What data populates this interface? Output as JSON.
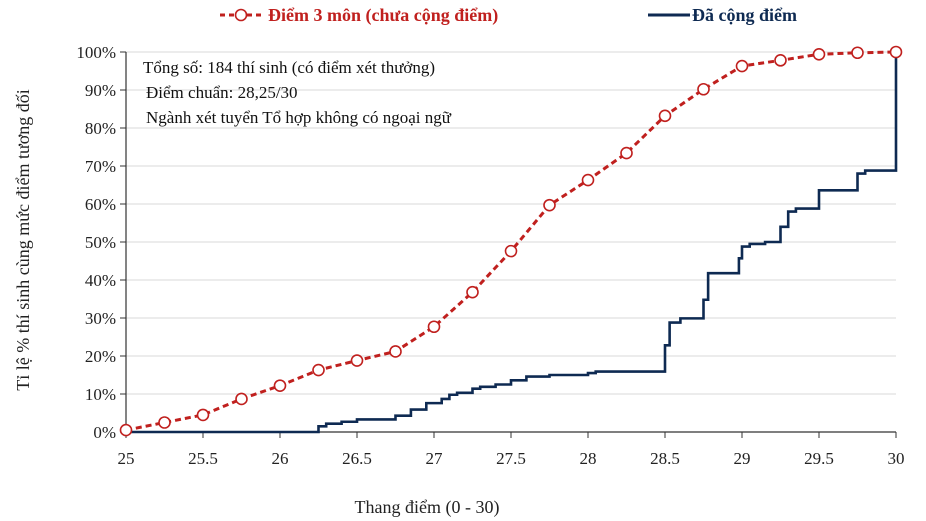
{
  "chart_data": {
    "type": "line",
    "xlabel": "Thang điểm (0 - 30)",
    "ylabel": "Tỉ lệ % thí sinh cùng mức điểm tương đối",
    "xlim": [
      25,
      30
    ],
    "ylim": [
      0,
      100
    ],
    "x_ticks": [
      "25",
      "25.5",
      "26",
      "26.5",
      "27",
      "27.5",
      "28",
      "28.5",
      "29",
      "29.5",
      "30"
    ],
    "y_ticks": [
      "0%",
      "10%",
      "20%",
      "30%",
      "40%",
      "50%",
      "60%",
      "70%",
      "80%",
      "90%",
      "100%"
    ],
    "grid": "horizontal",
    "legend_position": "top",
    "annotations": [
      "Tổng số: 184 thí sinh  (có điểm xét thưởng)",
      "Điểm chuẩn: 28,25/30",
      "Ngành xét tuyển Tổ hợp không có ngoại ngữ"
    ],
    "series": [
      {
        "name": "Điểm 3 môn (chưa cộng điểm)",
        "color": "#c0201e",
        "style": "dashed-marker",
        "x": [
          25,
          25.25,
          25.5,
          25.75,
          26,
          26.25,
          26.5,
          26.75,
          27,
          27.25,
          27.5,
          27.75,
          28,
          28.25,
          28.5,
          28.75,
          29,
          29.25,
          29.5,
          29.75,
          30
        ],
        "y": [
          0.5,
          2.5,
          4.5,
          8.7,
          12.2,
          16.3,
          18.8,
          21.2,
          27.7,
          36.8,
          47.6,
          59.7,
          66.3,
          73.4,
          83.2,
          90.2,
          96.3,
          97.8,
          99.4,
          99.8,
          100
        ]
      },
      {
        "name": "Đã cộng điểm",
        "color": "#0e2a52",
        "style": "step",
        "x": [
          25,
          26.25,
          26.3,
          26.4,
          26.5,
          26.75,
          26.85,
          26.95,
          27.05,
          27.1,
          27.15,
          27.25,
          27.3,
          27.4,
          27.5,
          27.6,
          27.75,
          28,
          28.05,
          28.5,
          28.53,
          28.6,
          28.75,
          28.78,
          28.98,
          29.0,
          29.05,
          29.15,
          29.25,
          29.3,
          29.35,
          29.5,
          29.75,
          29.8,
          30
        ],
        "y": [
          0,
          1.5,
          2.2,
          2.7,
          3.3,
          4.3,
          5.9,
          7.6,
          8.7,
          9.8,
          10.3,
          11.4,
          11.9,
          12.5,
          13.6,
          14.6,
          15.0,
          15.5,
          15.9,
          22.8,
          28.8,
          29.9,
          34.8,
          41.8,
          45.7,
          48.8,
          49.5,
          50.0,
          54.0,
          58.0,
          58.8,
          63.6,
          68.0,
          68.8,
          100
        ]
      }
    ]
  }
}
